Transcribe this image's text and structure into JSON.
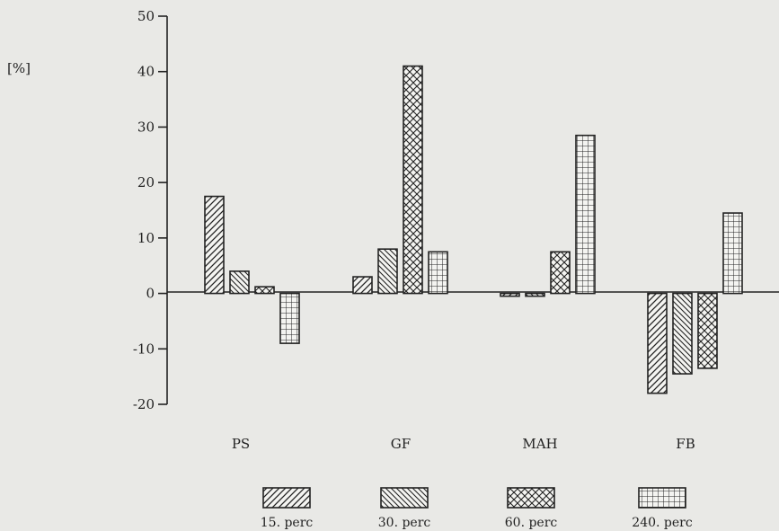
{
  "chart_data": {
    "type": "bar",
    "ylabel": "[%]",
    "ylim": [
      -20,
      50
    ],
    "yticks": [
      -20,
      -10,
      0,
      10,
      20,
      30,
      40,
      50
    ],
    "grid": false,
    "legend_position": "bottom",
    "categories": [
      "PS",
      "GF",
      "MAH",
      "FB"
    ],
    "series": [
      {
        "name": "15. perc",
        "pattern": "diagonal",
        "values": [
          17.5,
          3,
          -0.5,
          -18
        ]
      },
      {
        "name": "30. perc",
        "pattern": "back-diagonal",
        "values": [
          4,
          8,
          -0.5,
          -14.5
        ]
      },
      {
        "name": "60. perc",
        "pattern": "crosshatch",
        "values": [
          1.2,
          41,
          7.5,
          -13.5
        ]
      },
      {
        "name": "240. perc",
        "pattern": "grid",
        "values": [
          -9,
          7.5,
          28.5,
          14.5
        ]
      }
    ],
    "colors": {
      "ink": "#222222",
      "background": "#e9e9e6",
      "bar_fill": "#f4f4f1"
    }
  }
}
